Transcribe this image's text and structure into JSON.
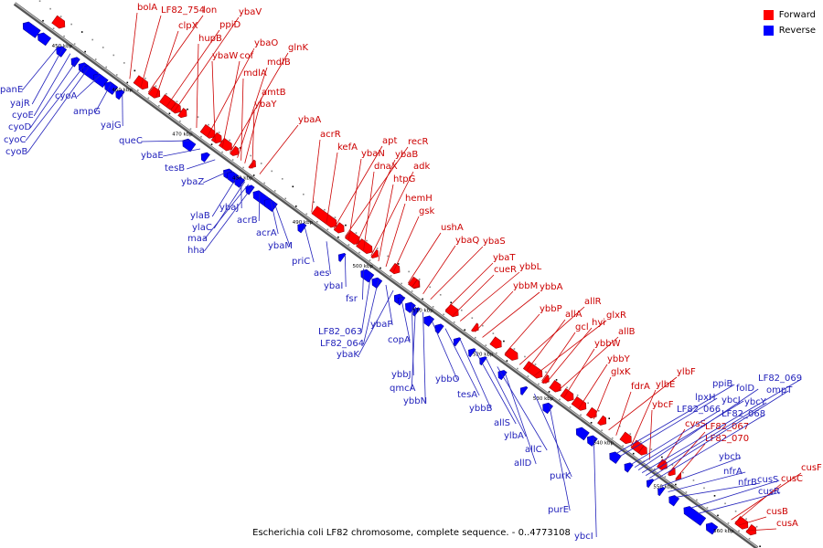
{
  "legend": {
    "forward": "Forward",
    "reverse": "Reverse"
  },
  "colors": {
    "forward": "#ff0000",
    "reverse": "#0000ff",
    "backbone": "#888888",
    "label_forward": "#cc0000",
    "label_reverse": "#2222bb"
  },
  "caption": "Escherichia coli LF82 chromosome, complete sequence. - 0..4773108",
  "ticks": [
    "450 kbp",
    "460 kbp",
    "470 kbp",
    "480 kbp",
    "490 kbp",
    "500 kbp",
    "510 kbp",
    "520 kbp",
    "530 kbp",
    "540 kbp",
    "550 kbp",
    "560 kbp"
  ],
  "forward_genes": [
    "bolA",
    "LF82_754",
    "lon",
    "clpX",
    "ppiD",
    "ybaV",
    "hupB",
    "ybaO",
    "ybaW",
    "cof",
    "glnK",
    "mdlB",
    "mdlA",
    "amtB",
    "ybaY",
    "ybaA",
    "acrR",
    "kefA",
    "apt",
    "recR",
    "ybaN",
    "ybaB",
    "dnaX",
    "adk",
    "htpG",
    "hemH",
    "gsk",
    "ushA",
    "ybaQ",
    "ybaS",
    "ybaT",
    "cueR",
    "ybbL",
    "ybbM",
    "ybbA",
    "ybbP",
    "allR",
    "allA",
    "glxR",
    "gcl",
    "hyi",
    "allB",
    "ybbW",
    "ybbY",
    "glxK",
    "ylbF",
    "fdrA",
    "ylbE",
    "ybcF",
    "cysS",
    "LF82_067",
    "LF82_070",
    "cusF",
    "cusC",
    "cusB",
    "cusA"
  ],
  "reverse_genes": [
    "panE",
    "yajR",
    "cyoE",
    "cyoD",
    "cyoC",
    "cyoB",
    "cyoA",
    "ampG",
    "yajG",
    "queC",
    "ybaE",
    "tesB",
    "ybaZ",
    "ylaB",
    "ybaJ",
    "ylaC",
    "maa",
    "hha",
    "acrB",
    "acrA",
    "ybaM",
    "priC",
    "aes",
    "ybaI",
    "fsr",
    "LF82_063",
    "LF82_064",
    "ybaP",
    "ybaK",
    "copA",
    "ybbJ",
    "qmcA",
    "ybbN",
    "ybbO",
    "tesA",
    "ybbB",
    "allS",
    "ylbA",
    "allC",
    "allD",
    "purK",
    "purE",
    "ybcI",
    "ppiB",
    "lpxH",
    "LF82_066",
    "ybcJ",
    "folD",
    "LF82_069",
    "ybcY",
    "ompT",
    "LF82_068",
    "ybch",
    "nfrA",
    "nfrB",
    "cusS",
    "cusR"
  ]
}
